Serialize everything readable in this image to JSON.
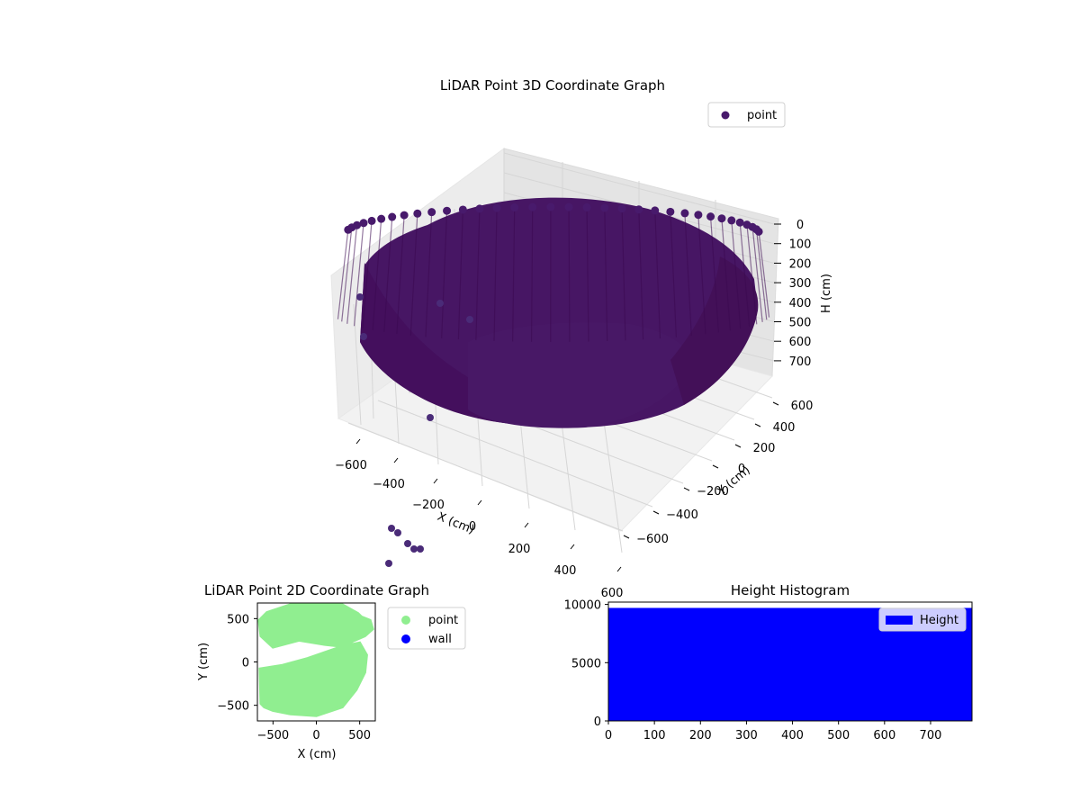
{
  "chart_data": [
    {
      "type": "scatter",
      "projection": "3d",
      "title": "LiDAR Point 3D Coordinate Graph",
      "xlabel": "X (cm)",
      "ylabel": "Y (cm)",
      "zlabel": "H (cm)",
      "xlim": [
        -700,
        700
      ],
      "ylim": [
        -700,
        700
      ],
      "zlim": [
        0,
        790
      ],
      "z_inverted": true,
      "xticks": [
        "−600",
        "−400",
        "−200",
        "0",
        "200",
        "400",
        "600"
      ],
      "yticks": [
        "−600",
        "−400",
        "−200",
        "0",
        "200",
        "400",
        "600"
      ],
      "zticks": [
        "0",
        "100",
        "200",
        "300",
        "400",
        "500",
        "600",
        "700"
      ],
      "grid": true,
      "legend": {
        "placement": "upper-right",
        "entries": [
          {
            "label": "point",
            "color": "#481a6c"
          }
        ]
      },
      "series": [
        {
          "name": "point",
          "color": "#481a6c",
          "description_points": [
            {
              "x": -620,
              "y": -150,
              "h": 350
            },
            {
              "x": -560,
              "y": -250,
              "h": 480
            },
            {
              "x": -300,
              "y": -600,
              "h": 450
            },
            {
              "x": -100,
              "y": 700,
              "h": 200
            },
            {
              "x": 200,
              "y": 700,
              "h": 180
            },
            {
              "x": 600,
              "y": 200,
              "h": 250
            },
            {
              "x": 650,
              "y": -100,
              "h": 300
            }
          ]
        }
      ]
    },
    {
      "type": "scatter",
      "title": "LiDAR Point 2D Coordinate Graph",
      "xlabel": "X (cm)",
      "ylabel": "Y (cm)",
      "xlim": [
        -680,
        680
      ],
      "ylim": [
        -680,
        680
      ],
      "xticks": [
        -500,
        0,
        500
      ],
      "yticks": [
        -500,
        0,
        500
      ],
      "legend": {
        "placement": "outside-right",
        "entries": [
          {
            "label": "point",
            "color": "#90ee90"
          },
          {
            "label": "wall",
            "color": "#0000ff"
          }
        ]
      },
      "series": [
        {
          "name": "point",
          "color": "#90ee90",
          "region_outline": [
            [
              -570,
              570
            ],
            [
              -300,
              660
            ],
            [
              0,
              680
            ],
            [
              300,
              660
            ],
            [
              480,
              560
            ],
            [
              520,
              520
            ],
            [
              620,
              480
            ],
            [
              650,
              380
            ],
            [
              560,
              300
            ],
            [
              420,
              240
            ],
            [
              300,
              180
            ],
            [
              -100,
              40
            ],
            [
              -400,
              -40
            ],
            [
              -650,
              -80
            ],
            [
              -640,
              -480
            ],
            [
              -600,
              -520
            ],
            [
              -500,
              -560
            ],
            [
              -300,
              -600
            ],
            [
              0,
              -620
            ],
            [
              300,
              -520
            ],
            [
              460,
              -320
            ],
            [
              560,
              -120
            ],
            [
              580,
              80
            ],
            [
              500,
              220
            ],
            [
              300,
              180
            ],
            [
              100,
              200
            ],
            [
              -200,
              250
            ],
            [
              -500,
              170
            ],
            [
              -640,
              300
            ],
            [
              -660,
              480
            ]
          ]
        },
        {
          "name": "wall",
          "color": "#0000ff",
          "points": []
        }
      ]
    },
    {
      "type": "bar",
      "subtype": "histogram",
      "title": "Height Histogram",
      "xlabel": "",
      "ylabel": "",
      "xlim": [
        0,
        790
      ],
      "ylim": [
        0,
        10200
      ],
      "xticks": [
        0,
        100,
        200,
        300,
        400,
        500,
        600,
        700
      ],
      "yticks": [
        0,
        5000,
        10000
      ],
      "bin_range": [
        0,
        790
      ],
      "count_per_bin": 9700,
      "color": "#0000ff",
      "legend": {
        "placement": "upper-right",
        "entries": [
          {
            "label": "Height",
            "color": "#0000ff"
          }
        ]
      }
    }
  ]
}
